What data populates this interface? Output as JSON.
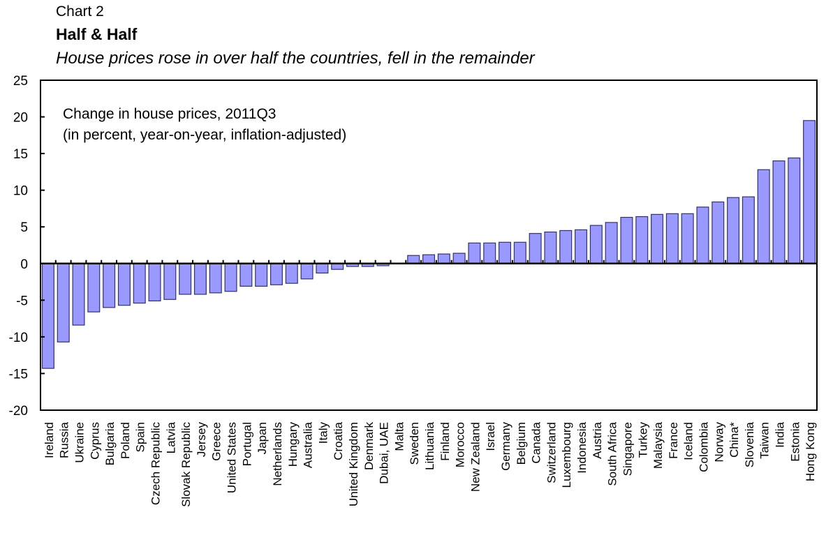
{
  "chart_data": {
    "type": "bar",
    "label": "Chart 2",
    "title": "Half & Half",
    "subtitle": "House prices rose in over half the countries, fell in the remainder",
    "annotation": [
      "Change in house prices, 2011Q3",
      "(in percent, year-on-year, inflation-adjusted)"
    ],
    "xlabel": "",
    "ylabel": "",
    "ylim": [
      -20,
      25
    ],
    "yticks": [
      25,
      20,
      15,
      10,
      5,
      0,
      -5,
      -10,
      -15,
      -20
    ],
    "grid": false,
    "legend": "none",
    "bar_color": "#9999ff",
    "bar_edge_color": "#333366",
    "categories": [
      "Ireland",
      "Russia",
      "Ukraine",
      "Cyprus",
      "Bulgaria",
      "Poland",
      "Spain",
      "Czech Republic",
      "Latvia",
      "Slovak Republic",
      "Jersey",
      "Greece",
      "United States",
      "Portugal",
      "Japan",
      "Netherlands",
      "Hungary",
      "Australia",
      "Italy",
      "Croatia",
      "United Kingdom",
      "Denmark",
      "Dubai, UAE",
      "Malta",
      "Sweden",
      "Lithuania",
      "Finland",
      "Morocco",
      "New Zealand",
      "Israel",
      "Germany",
      "Belgium",
      "Canada",
      "Switzerland",
      "Luxembourg",
      "Indonesia",
      "Austria",
      "South Africa",
      "Singapore",
      "Turkey",
      "Malaysia",
      "France",
      "Iceland",
      "Colombia",
      "Norway",
      "China*",
      "Slovenia",
      "Taiwan",
      "India",
      "Estonia",
      "Hong Kong"
    ],
    "values": [
      -14.3,
      -10.7,
      -8.4,
      -6.6,
      -6.0,
      -5.7,
      -5.4,
      -5.1,
      -4.9,
      -4.2,
      -4.2,
      -4.0,
      -3.8,
      -3.1,
      -3.1,
      -2.9,
      -2.7,
      -2.1,
      -1.3,
      -0.8,
      -0.4,
      -0.4,
      -0.3,
      0.0,
      1.1,
      1.2,
      1.3,
      1.4,
      2.8,
      2.8,
      2.9,
      2.9,
      4.1,
      4.3,
      4.5,
      4.6,
      5.2,
      5.6,
      6.3,
      6.4,
      6.7,
      6.8,
      6.8,
      7.7,
      8.4,
      9.0,
      9.1,
      12.8,
      14.0,
      14.4,
      19.5
    ]
  }
}
